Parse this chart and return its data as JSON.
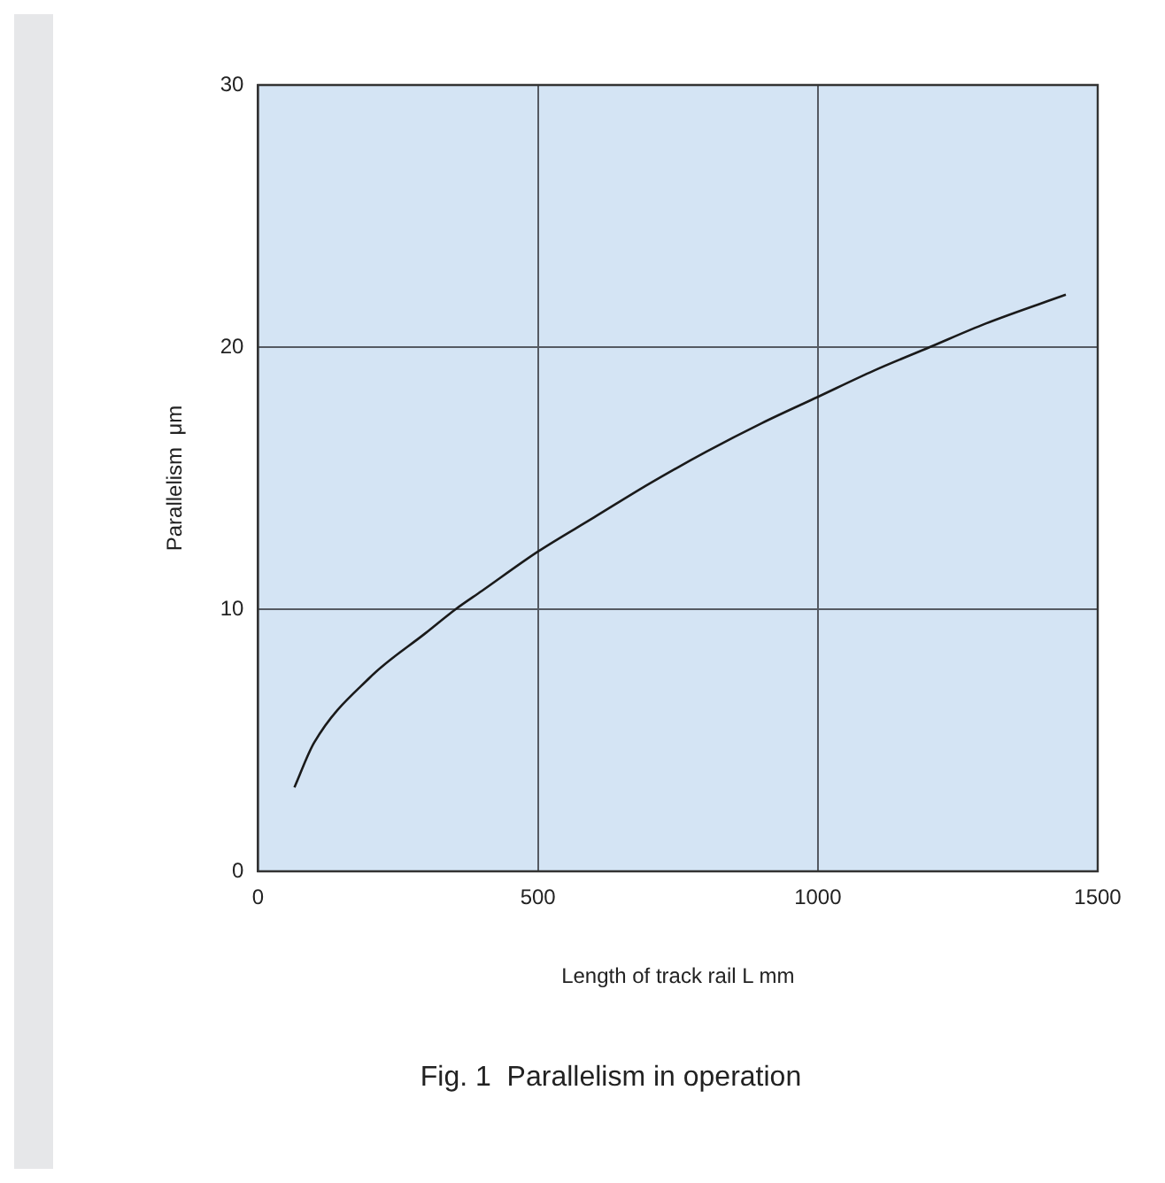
{
  "chart_data": {
    "type": "line",
    "title": "Fig. 1  Parallelism in operation",
    "xlabel": "Length of track rail L mm",
    "ylabel": "Parallelism  μm",
    "x": [
      65,
      100,
      200,
      300,
      353,
      400,
      500,
      600,
      700,
      800,
      900,
      1000,
      1100,
      1200,
      1300,
      1443
    ],
    "series": [
      {
        "color": "#1a1a1a",
        "values": [
          3.2,
          4.9,
          7.4,
          9.1,
          10,
          10.7,
          12.2,
          13.5,
          14.8,
          16.0,
          17.1,
          18.1,
          19.1,
          20.0,
          20.9,
          22.0
        ]
      }
    ],
    "xlim": [
      0,
      1500
    ],
    "ylim": [
      0,
      30
    ],
    "xticks": [
      0,
      500,
      1000,
      1500
    ],
    "yticks": [
      0,
      10,
      20,
      30
    ],
    "grid": true,
    "legend": false,
    "marker": "none",
    "line_style": "solid"
  }
}
